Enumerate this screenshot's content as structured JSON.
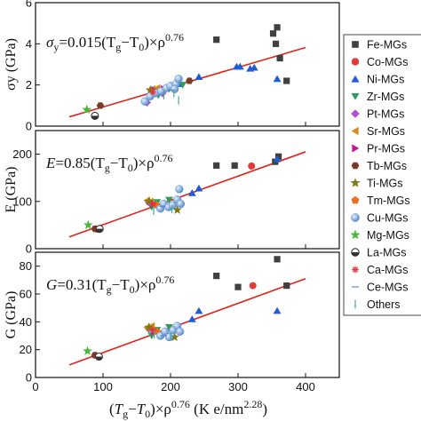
{
  "chart_data": [
    {
      "type": "scatter",
      "panel": "top",
      "ylabel_visible": "σy (GPa)",
      "ylim": [
        0,
        6
      ],
      "yticks": [
        "0",
        "2",
        "4",
        "6"
      ],
      "xlim": [
        0,
        450
      ],
      "equation": {
        "lhs": "σ",
        "lhs_sub": "y",
        "rhs": "=0.015(T",
        "sub1": "g",
        "mid": "−T",
        "sub0": "0",
        "tail": ")×ρ",
        "exp": "0.76"
      },
      "fit": {
        "x": [
          50,
          400
        ],
        "y": [
          0.45,
          3.82
        ],
        "color": "#e2231a"
      },
      "points": [
        {
          "s": 0,
          "x": 268,
          "y": 4.2
        },
        {
          "s": 0,
          "x": 352,
          "y": 4.5
        },
        {
          "s": 0,
          "x": 358,
          "y": 4.8
        },
        {
          "s": 0,
          "x": 356,
          "y": 4.0
        },
        {
          "s": 0,
          "x": 362,
          "y": 3.3
        },
        {
          "s": 0,
          "x": 372,
          "y": 2.2
        },
        {
          "s": 2,
          "x": 298,
          "y": 2.9
        },
        {
          "s": 2,
          "x": 303,
          "y": 2.9
        },
        {
          "s": 2,
          "x": 318,
          "y": 2.8
        },
        {
          "s": 2,
          "x": 324,
          "y": 2.85
        },
        {
          "s": 2,
          "x": 242,
          "y": 2.4
        },
        {
          "s": 2,
          "x": 358,
          "y": 2.3
        },
        {
          "s": 2,
          "x": 213,
          "y": 2.05
        },
        {
          "s": 3,
          "x": 172,
          "y": 1.55
        },
        {
          "s": 3,
          "x": 182,
          "y": 1.5
        },
        {
          "s": 3,
          "x": 190,
          "y": 1.7
        },
        {
          "s": 3,
          "x": 198,
          "y": 1.8
        },
        {
          "s": 3,
          "x": 207,
          "y": 1.9
        },
        {
          "s": 3,
          "x": 218,
          "y": 2.0
        },
        {
          "s": 4,
          "x": 165,
          "y": 1.15
        },
        {
          "s": 4,
          "x": 188,
          "y": 1.6
        },
        {
          "s": 5,
          "x": 173,
          "y": 1.8
        },
        {
          "s": 5,
          "x": 180,
          "y": 1.85
        },
        {
          "s": 6,
          "x": 176,
          "y": 1.75
        },
        {
          "s": 6,
          "x": 190,
          "y": 1.8
        },
        {
          "s": 7,
          "x": 96,
          "y": 1.0
        },
        {
          "s": 7,
          "x": 228,
          "y": 2.2
        },
        {
          "s": 8,
          "x": 170,
          "y": 1.75
        },
        {
          "s": 8,
          "x": 200,
          "y": 1.95
        },
        {
          "s": 9,
          "x": 182,
          "y": 1.65
        },
        {
          "s": 10,
          "x": 162,
          "y": 1.2
        },
        {
          "s": 10,
          "x": 170,
          "y": 1.45
        },
        {
          "s": 10,
          "x": 178,
          "y": 1.6
        },
        {
          "s": 10,
          "x": 186,
          "y": 1.7
        },
        {
          "s": 10,
          "x": 194,
          "y": 1.85
        },
        {
          "s": 10,
          "x": 200,
          "y": 1.95
        },
        {
          "s": 10,
          "x": 208,
          "y": 2.05
        },
        {
          "s": 10,
          "x": 212,
          "y": 2.3
        },
        {
          "s": 10,
          "x": 206,
          "y": 1.8
        },
        {
          "s": 11,
          "x": 76,
          "y": 0.8
        },
        {
          "s": 12,
          "x": 88,
          "y": 0.5
        },
        {
          "s": 13,
          "x": 174,
          "y": 1.65
        },
        {
          "s": 14,
          "x": 202,
          "y": 1.75
        },
        {
          "s": 15,
          "x": 190,
          "y": 1.5
        },
        {
          "s": 15,
          "x": 205,
          "y": 1.6
        },
        {
          "s": 15,
          "x": 212,
          "y": 1.25
        }
      ]
    },
    {
      "type": "scatter",
      "panel": "middle",
      "ylabel_visible": "E (GPa)",
      "ylim": [
        0,
        250
      ],
      "yticks": [
        "0",
        "100",
        "200"
      ],
      "xlim": [
        0,
        450
      ],
      "equation": {
        "lhs": "E",
        "lhs_sub": "",
        "rhs": "=0.85(T",
        "sub1": "g",
        "mid": "−T",
        "sub0": "0",
        "tail": ")×ρ",
        "exp": "0.76"
      },
      "fit": {
        "x": [
          50,
          400
        ],
        "y": [
          25,
          205
        ],
        "color": "#e2231a"
      },
      "points": [
        {
          "s": 0,
          "x": 268,
          "y": 176
        },
        {
          "s": 0,
          "x": 295,
          "y": 176
        },
        {
          "s": 0,
          "x": 355,
          "y": 184
        },
        {
          "s": 0,
          "x": 360,
          "y": 195
        },
        {
          "s": 1,
          "x": 320,
          "y": 175
        },
        {
          "s": 2,
          "x": 242,
          "y": 128
        },
        {
          "s": 2,
          "x": 232,
          "y": 118
        },
        {
          "s": 2,
          "x": 358,
          "y": 190
        },
        {
          "s": 3,
          "x": 172,
          "y": 88
        },
        {
          "s": 3,
          "x": 180,
          "y": 98
        },
        {
          "s": 3,
          "x": 190,
          "y": 92
        },
        {
          "s": 3,
          "x": 198,
          "y": 103
        },
        {
          "s": 4,
          "x": 168,
          "y": 98
        },
        {
          "s": 5,
          "x": 165,
          "y": 102
        },
        {
          "s": 5,
          "x": 170,
          "y": 100
        },
        {
          "s": 6,
          "x": 175,
          "y": 95
        },
        {
          "s": 7,
          "x": 88,
          "y": 42
        },
        {
          "s": 7,
          "x": 92,
          "y": 41
        },
        {
          "s": 8,
          "x": 168,
          "y": 100
        },
        {
          "s": 8,
          "x": 210,
          "y": 82
        },
        {
          "s": 9,
          "x": 180,
          "y": 92
        },
        {
          "s": 10,
          "x": 185,
          "y": 85
        },
        {
          "s": 10,
          "x": 190,
          "y": 95
        },
        {
          "s": 10,
          "x": 197,
          "y": 88
        },
        {
          "s": 10,
          "x": 203,
          "y": 92
        },
        {
          "s": 10,
          "x": 210,
          "y": 104
        },
        {
          "s": 10,
          "x": 213,
          "y": 126
        },
        {
          "s": 10,
          "x": 215,
          "y": 95
        },
        {
          "s": 11,
          "x": 78,
          "y": 50
        },
        {
          "s": 12,
          "x": 95,
          "y": 42
        },
        {
          "s": 13,
          "x": 174,
          "y": 95
        },
        {
          "s": 14,
          "x": 188,
          "y": 90
        },
        {
          "s": 15,
          "x": 175,
          "y": 80
        },
        {
          "s": 15,
          "x": 202,
          "y": 84
        }
      ]
    },
    {
      "type": "scatter",
      "panel": "bottom",
      "ylabel_visible": "G (GPa)",
      "ylim": [
        0,
        90
      ],
      "yticks": [
        "0",
        "20",
        "40",
        "60",
        "80"
      ],
      "xlim": [
        0,
        450
      ],
      "xticks": [
        "0",
        "100",
        "200",
        "300",
        "400"
      ],
      "equation": {
        "lhs": "G",
        "lhs_sub": "",
        "rhs": "=0.31(T",
        "sub1": "g",
        "mid": "−T",
        "sub0": "0",
        "tail": ")×ρ",
        "exp": "0.76"
      },
      "fit": {
        "x": [
          50,
          400
        ],
        "y": [
          9,
          71
        ],
        "color": "#e2231a"
      },
      "points": [
        {
          "s": 0,
          "x": 268,
          "y": 73
        },
        {
          "s": 0,
          "x": 300,
          "y": 65
        },
        {
          "s": 0,
          "x": 358,
          "y": 85
        },
        {
          "s": 0,
          "x": 372,
          "y": 66
        },
        {
          "s": 1,
          "x": 322,
          "y": 66
        },
        {
          "s": 2,
          "x": 242,
          "y": 48
        },
        {
          "s": 2,
          "x": 232,
          "y": 42
        },
        {
          "s": 2,
          "x": 358,
          "y": 48
        },
        {
          "s": 3,
          "x": 172,
          "y": 30
        },
        {
          "s": 3,
          "x": 180,
          "y": 34
        },
        {
          "s": 3,
          "x": 190,
          "y": 31
        },
        {
          "s": 3,
          "x": 198,
          "y": 36
        },
        {
          "s": 4,
          "x": 168,
          "y": 35
        },
        {
          "s": 5,
          "x": 165,
          "y": 36
        },
        {
          "s": 5,
          "x": 172,
          "y": 37
        },
        {
          "s": 6,
          "x": 176,
          "y": 33
        },
        {
          "s": 7,
          "x": 88,
          "y": 16
        },
        {
          "s": 7,
          "x": 93,
          "y": 15
        },
        {
          "s": 8,
          "x": 168,
          "y": 36
        },
        {
          "s": 8,
          "x": 206,
          "y": 29
        },
        {
          "s": 9,
          "x": 180,
          "y": 33
        },
        {
          "s": 10,
          "x": 185,
          "y": 30
        },
        {
          "s": 10,
          "x": 192,
          "y": 33
        },
        {
          "s": 10,
          "x": 198,
          "y": 29
        },
        {
          "s": 10,
          "x": 204,
          "y": 34
        },
        {
          "s": 10,
          "x": 210,
          "y": 37
        },
        {
          "s": 10,
          "x": 214,
          "y": 33
        },
        {
          "s": 11,
          "x": 77,
          "y": 19
        },
        {
          "s": 12,
          "x": 94,
          "y": 15
        },
        {
          "s": 13,
          "x": 174,
          "y": 34
        },
        {
          "s": 14,
          "x": 190,
          "y": 30
        },
        {
          "s": 15,
          "x": 176,
          "y": 31
        },
        {
          "s": 15,
          "x": 200,
          "y": 30
        }
      ]
    }
  ],
  "x_axis_label": {
    "open": "(",
    "t1": "T",
    "s1": "g",
    "dash": "−",
    "t2": "T",
    "s2": "0",
    "close": ")×ρ",
    "exp": "0.76",
    "units": " (K e/nm",
    "uexp": "2.28",
    "uclose": ")"
  },
  "legend": {
    "placement": "right",
    "series": [
      {
        "label": "Fe-MGs",
        "shape": "square",
        "color": "#404040"
      },
      {
        "label": "Co-MGs",
        "shape": "circle",
        "color": "#e23b3b"
      },
      {
        "label": "Ni-MGs",
        "shape": "triangle-up",
        "color": "#1f5bd6"
      },
      {
        "label": "Zr-MGs",
        "shape": "triangle-down",
        "color": "#2e9e5a"
      },
      {
        "label": "Pt-MGs",
        "shape": "diamond",
        "color": "#b24fd1"
      },
      {
        "label": "Sr-MGs",
        "shape": "triangle-left",
        "color": "#d98a1e"
      },
      {
        "label": "Pr-MGs",
        "shape": "triangle-right",
        "color": "#c8149b"
      },
      {
        "label": "Tb-MGs",
        "shape": "hexagon",
        "color": "#7a3a2a"
      },
      {
        "label": "Ti-MGs",
        "shape": "star",
        "color": "#7f7a12"
      },
      {
        "label": "Tm-MGs",
        "shape": "pentagon",
        "color": "#ee6a1a"
      },
      {
        "label": "Cu-MGs",
        "shape": "sphere",
        "color": "#6fa3dd"
      },
      {
        "label": "Mg-MGs",
        "shape": "star",
        "color": "#49b83a"
      },
      {
        "label": "La-MGs",
        "shape": "half-circle",
        "color": "#333333"
      },
      {
        "label": "Ca-MGs",
        "shape": "asterisk",
        "color": "#e8333a"
      },
      {
        "label": "Ce-MGs",
        "shape": "hline",
        "color": "#5d86c6"
      },
      {
        "label": "Others",
        "shape": "vline",
        "color": "#48a89a"
      }
    ]
  }
}
